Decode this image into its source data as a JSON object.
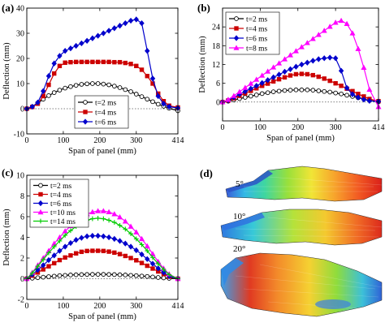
{
  "figure": {
    "panel_d": {
      "label": "(d)",
      "angles": [
        "5°",
        "10°",
        "20°"
      ]
    }
  },
  "chart_data": [
    {
      "panel": "(a)",
      "type": "line",
      "xlabel": "Span of panel (mm)",
      "ylabel": "Deflection (mm)",
      "xlim": [
        0,
        414
      ],
      "ylim": [
        -10,
        40
      ],
      "xticks": [
        "0",
        "100",
        "200",
        "300",
        "414"
      ],
      "yticks": [
        "-10",
        "0",
        "10",
        "20",
        "30",
        "40"
      ],
      "grid": false,
      "legend": "bottom-center",
      "series": [
        {
          "name": "t=2 ms",
          "color": "#000000",
          "marker": "circle",
          "x": [
            0,
            15,
            30,
            45,
            60,
            75,
            90,
            105,
            120,
            135,
            150,
            165,
            180,
            195,
            210,
            225,
            240,
            255,
            270,
            285,
            300,
            315,
            330,
            345,
            360,
            375,
            390,
            414
          ],
          "y": [
            0,
            0.8,
            2.2,
            3.8,
            5.2,
            6.4,
            7.4,
            8.2,
            8.8,
            9.3,
            9.7,
            9.9,
            10.0,
            10.0,
            9.8,
            9.5,
            9.0,
            8.4,
            7.6,
            6.8,
            5.8,
            4.8,
            3.8,
            2.8,
            1.8,
            1.0,
            0.2,
            -0.8
          ]
        },
        {
          "name": "t=4 ms",
          "color": "#cc0000",
          "marker": "square",
          "x": [
            0,
            15,
            30,
            45,
            60,
            75,
            90,
            105,
            120,
            135,
            150,
            165,
            180,
            195,
            210,
            225,
            240,
            255,
            270,
            285,
            300,
            315,
            330,
            345,
            360,
            375,
            390,
            414
          ],
          "y": [
            0,
            0.7,
            2.0,
            5.0,
            9.5,
            14.0,
            17.0,
            18.3,
            18.5,
            18.6,
            18.6,
            18.6,
            18.6,
            18.6,
            18.6,
            18.6,
            18.5,
            18.5,
            18.2,
            17.8,
            17.0,
            15.5,
            13.0,
            10.0,
            6.0,
            3.0,
            1.2,
            0.5
          ]
        },
        {
          "name": "t=6 ms",
          "color": "#0000cc",
          "marker": "diamond",
          "x": [
            0,
            15,
            30,
            45,
            60,
            75,
            90,
            105,
            120,
            135,
            150,
            165,
            180,
            195,
            210,
            225,
            240,
            255,
            270,
            285,
            300,
            315,
            330,
            345,
            360,
            375,
            390,
            414
          ],
          "y": [
            0,
            0.8,
            2.5,
            7.0,
            13.0,
            18.0,
            21.0,
            23.0,
            24.0,
            25.0,
            26.0,
            27.0,
            28.0,
            29.0,
            30.0,
            31.0,
            32.0,
            33.0,
            34.0,
            35.0,
            35.5,
            34.0,
            23.0,
            12.0,
            5.0,
            2.0,
            0.8,
            0.3
          ]
        }
      ]
    },
    {
      "panel": "(b)",
      "type": "line",
      "xlabel": "Span of panel (mm)",
      "ylabel": "Deflection (mm)",
      "xlim": [
        0,
        414
      ],
      "ylim": [
        -6,
        30
      ],
      "xticks": [
        "0",
        "100",
        "200",
        "300",
        "414"
      ],
      "yticks": [
        "0",
        "6",
        "12",
        "18",
        "24"
      ],
      "grid": false,
      "legend": "top-left",
      "series": [
        {
          "name": "t=2 ms",
          "color": "#000000",
          "marker": "circle",
          "x": [
            0,
            15,
            30,
            45,
            60,
            75,
            90,
            105,
            120,
            135,
            150,
            165,
            180,
            195,
            210,
            225,
            240,
            255,
            270,
            285,
            300,
            315,
            330,
            345,
            360,
            375,
            390,
            414
          ],
          "y": [
            0,
            0.3,
            0.7,
            1.1,
            1.5,
            1.9,
            2.3,
            2.7,
            3.0,
            3.3,
            3.5,
            3.7,
            3.8,
            3.9,
            3.9,
            3.9,
            3.8,
            3.6,
            3.4,
            3.2,
            2.9,
            2.6,
            2.2,
            1.8,
            1.4,
            1.0,
            0.5,
            0.1
          ]
        },
        {
          "name": "t=4 ms",
          "color": "#cc0000",
          "marker": "square",
          "x": [
            0,
            15,
            30,
            45,
            60,
            75,
            90,
            105,
            120,
            135,
            150,
            165,
            180,
            195,
            210,
            225,
            240,
            255,
            270,
            285,
            300,
            315,
            330,
            345,
            360,
            375,
            390,
            414
          ],
          "y": [
            0,
            0.5,
            1.2,
            2.0,
            2.8,
            3.6,
            4.4,
            5.2,
            5.9,
            6.6,
            7.3,
            7.9,
            8.5,
            8.9,
            9.0,
            8.9,
            8.6,
            8.1,
            7.5,
            6.8,
            6.0,
            5.2,
            4.3,
            3.5,
            2.6,
            1.8,
            1.0,
            0.3
          ]
        },
        {
          "name": "t=6 ms",
          "color": "#0000cc",
          "marker": "diamond",
          "x": [
            0,
            15,
            30,
            45,
            60,
            75,
            90,
            105,
            120,
            135,
            150,
            165,
            180,
            195,
            210,
            225,
            240,
            255,
            270,
            285,
            300,
            315,
            330,
            345,
            360,
            375,
            390,
            414
          ],
          "y": [
            0,
            0.6,
            1.5,
            2.5,
            3.4,
            4.3,
            5.2,
            6.1,
            7.0,
            7.9,
            8.8,
            9.7,
            10.5,
            11.3,
            12.0,
            12.6,
            13.2,
            13.7,
            14.0,
            14.2,
            14.0,
            10.0,
            4.5,
            2.5,
            1.5,
            0.8,
            0.4,
            0.2
          ]
        },
        {
          "name": "t=8 ms",
          "color": "#ff00ff",
          "marker": "triangle",
          "x": [
            0,
            15,
            30,
            45,
            60,
            75,
            90,
            105,
            120,
            135,
            150,
            165,
            180,
            195,
            210,
            225,
            240,
            255,
            270,
            285,
            300,
            315,
            330,
            345,
            360,
            375,
            390,
            414
          ],
          "y": [
            0,
            0.8,
            2.0,
            3.3,
            4.6,
            5.9,
            7.2,
            8.5,
            9.8,
            11.1,
            12.4,
            13.7,
            15.0,
            16.3,
            17.6,
            18.9,
            20.2,
            21.5,
            22.8,
            24.1,
            25.4,
            26.0,
            25.0,
            22.0,
            17.0,
            11.0,
            4.0,
            -1.5
          ]
        }
      ]
    },
    {
      "panel": "(c)",
      "type": "line",
      "xlabel": "Span of panel (mm)",
      "ylabel": "Deflection (mm)",
      "xlim": [
        0,
        414
      ],
      "ylim": [
        -2,
        10
      ],
      "xticks": [
        "0",
        "100",
        "200",
        "300",
        "414"
      ],
      "yticks": [
        "-2",
        "0",
        "2",
        "4",
        "6",
        "8",
        "10"
      ],
      "grid": false,
      "legend": "top-left",
      "series": [
        {
          "name": "t=2 ms",
          "color": "#000000",
          "marker": "circle",
          "x": [
            0,
            15,
            30,
            45,
            60,
            75,
            90,
            105,
            120,
            135,
            150,
            165,
            180,
            195,
            210,
            225,
            240,
            255,
            270,
            285,
            300,
            315,
            330,
            345,
            360,
            375,
            390,
            414
          ],
          "y": [
            0,
            0.05,
            0.1,
            0.15,
            0.2,
            0.25,
            0.3,
            0.33,
            0.36,
            0.38,
            0.4,
            0.41,
            0.42,
            0.42,
            0.42,
            0.41,
            0.4,
            0.38,
            0.36,
            0.33,
            0.3,
            0.26,
            0.22,
            0.17,
            0.12,
            0.08,
            0.04,
            0.0
          ]
        },
        {
          "name": "t=4 ms",
          "color": "#cc0000",
          "marker": "square",
          "x": [
            0,
            15,
            30,
            45,
            60,
            75,
            90,
            105,
            120,
            135,
            150,
            165,
            180,
            195,
            210,
            225,
            240,
            255,
            270,
            285,
            300,
            315,
            330,
            345,
            360,
            375,
            390,
            414
          ],
          "y": [
            0,
            0.3,
            0.6,
            0.9,
            1.2,
            1.5,
            1.8,
            2.05,
            2.25,
            2.45,
            2.6,
            2.68,
            2.7,
            2.7,
            2.68,
            2.62,
            2.52,
            2.38,
            2.2,
            2.0,
            1.78,
            1.52,
            1.25,
            0.98,
            0.7,
            0.45,
            0.2,
            0.0
          ]
        },
        {
          "name": "t=6 ms",
          "color": "#0000cc",
          "marker": "diamond",
          "x": [
            0,
            15,
            30,
            45,
            60,
            75,
            90,
            105,
            120,
            135,
            150,
            165,
            180,
            195,
            210,
            225,
            240,
            255,
            270,
            285,
            300,
            315,
            330,
            345,
            360,
            375,
            390,
            414
          ],
          "y": [
            0,
            0.4,
            0.85,
            1.3,
            1.8,
            2.25,
            2.7,
            3.1,
            3.45,
            3.75,
            3.95,
            4.1,
            4.15,
            4.15,
            4.1,
            4.0,
            3.85,
            3.65,
            3.4,
            3.1,
            2.75,
            2.35,
            1.9,
            1.45,
            1.0,
            0.6,
            0.25,
            0.0
          ]
        },
        {
          "name": "t=10 ms",
          "color": "#ff00ff",
          "marker": "triangle",
          "x": [
            0,
            15,
            30,
            45,
            60,
            75,
            90,
            105,
            120,
            135,
            150,
            165,
            180,
            195,
            210,
            225,
            240,
            255,
            270,
            285,
            300,
            315,
            330,
            345,
            360,
            375,
            390,
            414
          ],
          "y": [
            0,
            0.6,
            1.3,
            2.0,
            2.7,
            3.4,
            4.0,
            4.6,
            5.1,
            5.55,
            5.95,
            6.25,
            6.45,
            6.55,
            6.55,
            6.45,
            6.25,
            5.95,
            5.55,
            5.05,
            4.5,
            3.85,
            3.15,
            2.4,
            1.65,
            1.0,
            0.45,
            0.0
          ]
        },
        {
          "name": "t=14 ms",
          "color": "#00cc00",
          "marker": "plus",
          "x": [
            0,
            15,
            30,
            45,
            60,
            75,
            90,
            105,
            120,
            135,
            150,
            165,
            180,
            195,
            210,
            225,
            240,
            255,
            270,
            285,
            300,
            315,
            330,
            345,
            360,
            375,
            390,
            414
          ],
          "y": [
            0,
            0.55,
            1.2,
            1.85,
            2.5,
            3.1,
            3.65,
            4.2,
            4.65,
            5.05,
            5.4,
            5.65,
            5.8,
            5.85,
            5.8,
            5.65,
            5.45,
            5.15,
            4.8,
            4.35,
            3.85,
            3.3,
            2.7,
            2.05,
            1.45,
            0.9,
            0.4,
            0.0
          ]
        }
      ]
    }
  ]
}
